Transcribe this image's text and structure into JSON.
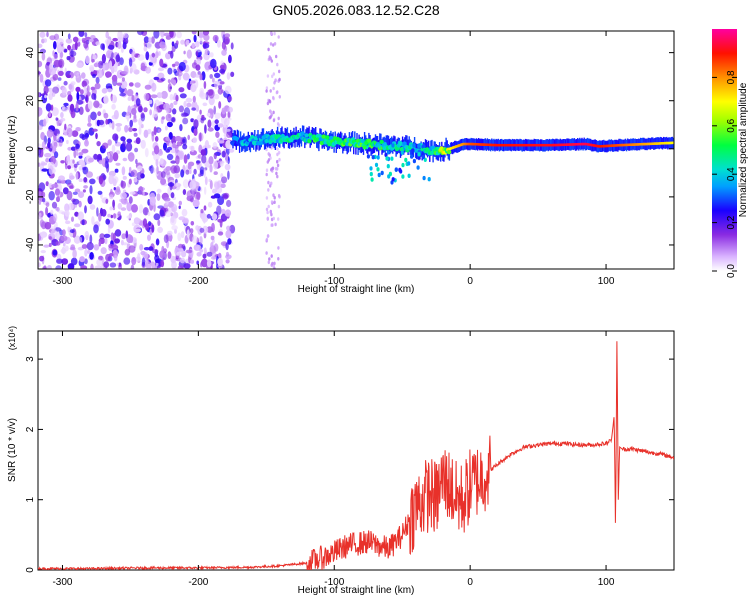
{
  "figure": {
    "title": "GN05.2026.083.12.52.C28"
  },
  "chart_data": [
    {
      "type": "heatmap",
      "title": "GN05.2026.083.12.52.C28",
      "xlabel": "Height of straight line (km)",
      "ylabel": "Frequency (Hz)",
      "xlim": [
        -318,
        150
      ],
      "ylim": [
        -50,
        49
      ],
      "x_ticks": [
        -300,
        -200,
        -100,
        0,
        100
      ],
      "y_ticks": [
        -40,
        -20,
        0,
        20,
        40
      ],
      "colorbar": {
        "label": "Normalized spectral amplitude",
        "range": [
          0.0,
          1.0
        ],
        "ticks": [
          0.0,
          0.2,
          0.4,
          0.6,
          0.8
        ],
        "tick_labels": [
          "0.0",
          "0.2",
          "0.4",
          "0.6",
          "0.8"
        ],
        "colors": [
          "#ffffff",
          "#c080ff",
          "#6a00ff",
          "#0000ff",
          "#00c8ff",
          "#00e0a0",
          "#00ff00",
          "#c8ff00",
          "#ffff00",
          "#ff8000",
          "#ff0000",
          "#ff00a0"
        ]
      },
      "ridge": {
        "x": [
          -175,
          -150,
          -125,
          -100,
          -75,
          -50,
          -35,
          -25,
          -15,
          -5,
          0,
          20,
          60,
          85,
          95,
          110,
          150
        ],
        "freq": [
          3,
          4,
          5,
          3,
          2,
          1,
          0,
          -1,
          0,
          2,
          2,
          1.5,
          1.5,
          2,
          1,
          1.5,
          2.5
        ],
        "amplitude": [
          0.35,
          0.4,
          0.45,
          0.5,
          0.5,
          0.45,
          0.4,
          0.55,
          0.7,
          0.8,
          0.85,
          0.9,
          0.92,
          0.95,
          0.9,
          0.85,
          0.7
        ]
      },
      "noise_region": {
        "x_range": [
          -318,
          -175
        ],
        "stray_band_x": [
          -150,
          -140
        ]
      }
    },
    {
      "type": "line",
      "xlabel": "Height of straight line (km)",
      "ylabel": "SNR (10 * v/v)",
      "y_multiplier": "(x10⁴)",
      "xlim": [
        -318,
        150
      ],
      "ylim": [
        0,
        3.4
      ],
      "x_ticks": [
        -300,
        -200,
        -100,
        0,
        100
      ],
      "y_ticks": [
        0,
        1,
        2,
        3
      ],
      "color": "#e8312a",
      "series": [
        {
          "x": [
            -318,
            -280,
            -240,
            -200,
            -160,
            -140,
            -120,
            -105,
            -90,
            -75,
            -60,
            -50,
            -40,
            -30,
            -25,
            -20,
            -15,
            -10,
            -5,
            0,
            10,
            20,
            30,
            40,
            50,
            60,
            70,
            80,
            90,
            100,
            104,
            106,
            107,
            108,
            109,
            110,
            112,
            120,
            130,
            140,
            150
          ],
          "values": [
            0.02,
            0.02,
            0.03,
            0.03,
            0.04,
            0.06,
            0.1,
            0.2,
            0.35,
            0.4,
            0.3,
            0.5,
            0.9,
            1.1,
            1.0,
            1.3,
            1.2,
            1.0,
            1.0,
            1.2,
            1.35,
            1.5,
            1.65,
            1.75,
            1.78,
            1.8,
            1.8,
            1.78,
            1.78,
            1.8,
            1.85,
            2.2,
            0.5,
            3.4,
            1.0,
            1.75,
            1.72,
            1.72,
            1.68,
            1.65,
            1.6
          ]
        }
      ]
    }
  ]
}
